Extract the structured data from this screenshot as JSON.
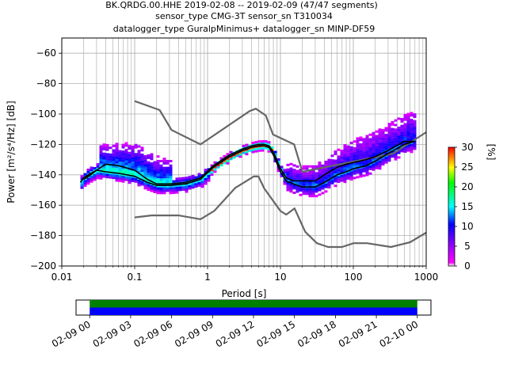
{
  "title": {
    "line1": "BK.QRDG.00.HHE   2019-02-08 -- 2019-02-09  (47/47 segments)",
    "line2": "sensor_type CMG-3T sensor_sn T310034",
    "line3": "datalogger_type GuralpMinimus+ datalogger_sn MINP-DF59"
  },
  "chart_data": [
    {
      "type": "heatmap",
      "xlabel": "Period [s]",
      "ylabel": "Power [m²/s⁴/Hz] [dB]",
      "xscale": "log",
      "xlim": [
        0.01,
        1000
      ],
      "ylim": [
        -200,
        -50
      ],
      "xticks": [
        {
          "value": 0.01,
          "label": "0.01"
        },
        {
          "value": 0.1,
          "label": "0.1"
        },
        {
          "value": 1,
          "label": "1"
        },
        {
          "value": 10,
          "label": "10"
        },
        {
          "value": 100,
          "label": "100"
        },
        {
          "value": 1000,
          "label": "1000"
        }
      ],
      "yticks": [
        {
          "value": -60,
          "label": "−60"
        },
        {
          "value": -80,
          "label": "−80"
        },
        {
          "value": -100,
          "label": "−100"
        },
        {
          "value": -120,
          "label": "−120"
        },
        {
          "value": -140,
          "label": "−140"
        },
        {
          "value": -160,
          "label": "−160"
        },
        {
          "value": -180,
          "label": "−180"
        },
        {
          "value": -200,
          "label": "−200"
        }
      ],
      "grid": true,
      "colorbar": {
        "label": "[%]",
        "range": [
          0,
          30
        ],
        "ticks": [
          {
            "value": 0,
            "label": "0"
          },
          {
            "value": 5,
            "label": "5"
          },
          {
            "value": 10,
            "label": "10"
          },
          {
            "value": 15,
            "label": "15"
          },
          {
            "value": 20,
            "label": "20"
          },
          {
            "value": 25,
            "label": "25"
          },
          {
            "value": 30,
            "label": "30"
          }
        ]
      },
      "noise_model_high": {
        "x": [
          0.1,
          0.22,
          0.32,
          0.8,
          3.8,
          4.6,
          6.3,
          7.9,
          15.4,
          20,
          354.8,
          1000
        ],
        "y": [
          -91.5,
          -97.4,
          -110.5,
          -120,
          -98,
          -96.5,
          -101,
          -113.5,
          -120,
          -138,
          -126,
          -112
        ]
      },
      "noise_model_low": {
        "x": [
          0.1,
          0.17,
          0.4,
          0.8,
          1.24,
          2.4,
          4.3,
          5,
          6,
          10,
          12,
          15.6,
          21.9,
          31.6,
          45,
          70,
          101,
          154,
          328,
          600,
          1000
        ],
        "y": [
          -168,
          -166.7,
          -166.7,
          -169.2,
          -163.7,
          -148.6,
          -141.1,
          -141.1,
          -149,
          -163.8,
          -166.2,
          -162.1,
          -177.5,
          -185,
          -187.5,
          -187.5,
          -185,
          -185,
          -187.5,
          -184.4,
          -178
        ]
      },
      "mean": {
        "x": [
          0.02,
          0.025,
          0.03,
          0.04,
          0.06,
          0.1,
          0.15,
          0.2,
          0.3,
          0.5,
          0.8,
          1.2,
          2,
          3,
          4,
          5,
          6,
          7,
          8,
          10,
          12,
          15,
          20,
          30,
          40,
          60,
          80,
          100,
          150,
          200,
          300,
          500,
          700
        ],
        "y": [
          -143,
          -140,
          -137,
          -133,
          -134,
          -137,
          -143,
          -146,
          -146,
          -145,
          -142,
          -134,
          -127,
          -123,
          -121,
          -120,
          -120,
          -121,
          -125,
          -136,
          -142,
          -144,
          -144,
          -144,
          -140,
          -135,
          -133,
          -132,
          -130,
          -128,
          -124,
          -118,
          -118
        ]
      },
      "mode": {
        "x": [
          0.018,
          0.02,
          0.025,
          0.03,
          0.04,
          0.06,
          0.1,
          0.15,
          0.2,
          0.3,
          0.5,
          0.8,
          1.2,
          2,
          3,
          4,
          5,
          6,
          7,
          8,
          10,
          12,
          15,
          20,
          30,
          40,
          60,
          80,
          100,
          150,
          200,
          300,
          500,
          700
        ],
        "y": [
          -145,
          -142,
          -139,
          -137,
          -138,
          -139,
          -141,
          -145,
          -147,
          -147,
          -146,
          -143,
          -135,
          -128,
          -124,
          -122,
          -121,
          -121,
          -122,
          -127,
          -138,
          -144,
          -146,
          -148,
          -148,
          -145,
          -140,
          -138,
          -136,
          -134,
          -131,
          -126,
          -120,
          -118
        ]
      }
    },
    {
      "type": "timeline",
      "xlim": [
        "2019-02-08 23:00",
        "2019-02-10 01:00"
      ],
      "tick_labels": [
        "02-09 00",
        "02-09 03",
        "02-09 06",
        "02-09 09",
        "02-09 12",
        "02-09 15",
        "02-09 18",
        "02-09 21",
        "02-10 00"
      ],
      "tick_hours": [
        0,
        3,
        6,
        9,
        12,
        15,
        18,
        21,
        24
      ],
      "bars": [
        {
          "start_hour": 0,
          "end_hour": 24,
          "color": "#008000"
        },
        {
          "start_hour": 0,
          "end_hour": 24,
          "color": "#0000ff"
        }
      ]
    }
  ]
}
